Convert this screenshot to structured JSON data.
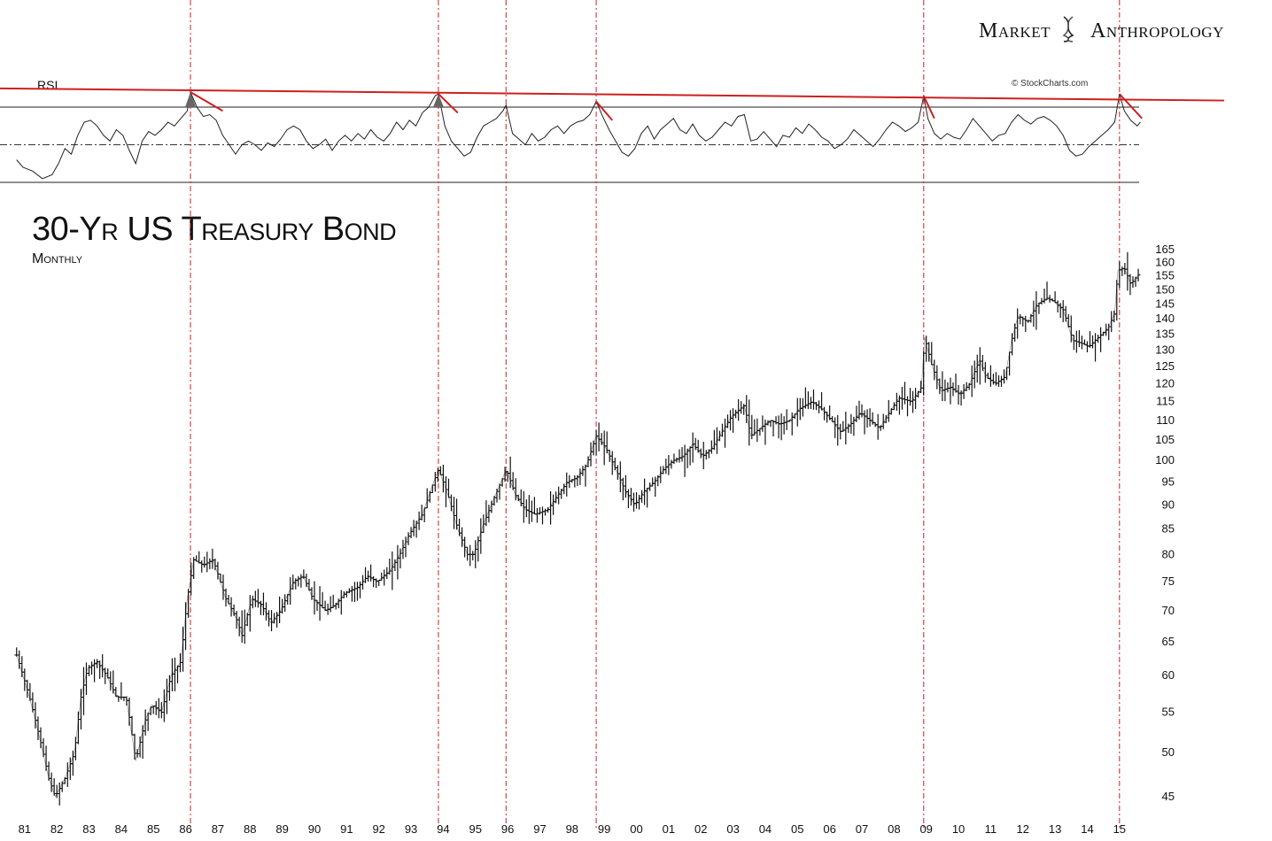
{
  "brand": {
    "word1": "Market",
    "word2": "Anthropology",
    "icon": "dna-helix-icon"
  },
  "credit": "© StockCharts.com",
  "chart_data": {
    "type": "line",
    "title": "30-Yr US Treasury Bond",
    "subtitle": "Monthly",
    "indicator_label": "RSI",
    "y_ticks": [
      45,
      50,
      55,
      60,
      65,
      70,
      75,
      80,
      85,
      90,
      95,
      100,
      105,
      110,
      115,
      120,
      125,
      130,
      135,
      140,
      145,
      150,
      155,
      160,
      165
    ],
    "x_ticks": [
      "81",
      "82",
      "83",
      "84",
      "85",
      "86",
      "87",
      "88",
      "89",
      "90",
      "91",
      "92",
      "93",
      "94",
      "95",
      "96",
      "97",
      "98",
      "99",
      "00",
      "01",
      "02",
      "03",
      "04",
      "05",
      "06",
      "07",
      "08",
      "09",
      "10",
      "11",
      "12",
      "13",
      "14",
      "15"
    ],
    "price_series": {
      "name": "30-Yr US Treasury Bond (monthly bars)",
      "points": [
        [
          1980.8,
          63
        ],
        [
          1981.2,
          57
        ],
        [
          1981.5,
          52
        ],
        [
          1981.8,
          47
        ],
        [
          1982.0,
          45
        ],
        [
          1982.3,
          47
        ],
        [
          1982.6,
          50
        ],
        [
          1982.8,
          57
        ],
        [
          1983.0,
          61
        ],
        [
          1983.3,
          62
        ],
        [
          1983.6,
          60
        ],
        [
          1983.9,
          57
        ],
        [
          1984.2,
          57
        ],
        [
          1984.5,
          49
        ],
        [
          1984.8,
          54
        ],
        [
          1985.0,
          56
        ],
        [
          1985.3,
          55
        ],
        [
          1985.6,
          60
        ],
        [
          1985.9,
          62
        ],
        [
          1986.1,
          72
        ],
        [
          1986.3,
          79
        ],
        [
          1986.6,
          78
        ],
        [
          1986.9,
          79
        ],
        [
          1987.3,
          72
        ],
        [
          1987.6,
          69
        ],
        [
          1987.8,
          66
        ],
        [
          1988.1,
          72
        ],
        [
          1988.4,
          71
        ],
        [
          1988.7,
          68
        ],
        [
          1989.0,
          70
        ],
        [
          1989.4,
          75
        ],
        [
          1989.7,
          76
        ],
        [
          1990.0,
          72
        ],
        [
          1990.4,
          70
        ],
        [
          1990.7,
          71
        ],
        [
          1991.0,
          73
        ],
        [
          1991.4,
          74
        ],
        [
          1991.7,
          76
        ],
        [
          1992.0,
          75
        ],
        [
          1992.4,
          77
        ],
        [
          1992.7,
          80
        ],
        [
          1993.0,
          84
        ],
        [
          1993.4,
          88
        ],
        [
          1993.7,
          94
        ],
        [
          1993.9,
          98
        ],
        [
          1994.2,
          92
        ],
        [
          1994.5,
          85
        ],
        [
          1994.8,
          80
        ],
        [
          1995.0,
          80
        ],
        [
          1995.3,
          86
        ],
        [
          1995.6,
          91
        ],
        [
          1995.9,
          96
        ],
        [
          1996.0,
          98
        ],
        [
          1996.3,
          92
        ],
        [
          1996.6,
          89
        ],
        [
          1996.9,
          88
        ],
        [
          1997.3,
          89
        ],
        [
          1997.6,
          92
        ],
        [
          1997.9,
          95
        ],
        [
          1998.2,
          96
        ],
        [
          1998.5,
          99
        ],
        [
          1998.8,
          106
        ],
        [
          1999.1,
          103
        ],
        [
          1999.4,
          98
        ],
        [
          1999.7,
          93
        ],
        [
          2000.0,
          90
        ],
        [
          2000.3,
          93
        ],
        [
          2000.6,
          95
        ],
        [
          2000.9,
          98
        ],
        [
          2001.2,
          100
        ],
        [
          2001.5,
          101
        ],
        [
          2001.8,
          104
        ],
        [
          2002.1,
          101
        ],
        [
          2002.4,
          103
        ],
        [
          2002.7,
          107
        ],
        [
          2003.0,
          111
        ],
        [
          2003.4,
          114
        ],
        [
          2003.6,
          106
        ],
        [
          2003.9,
          108
        ],
        [
          2004.2,
          110
        ],
        [
          2004.5,
          109
        ],
        [
          2004.8,
          110
        ],
        [
          2005.1,
          113
        ],
        [
          2005.5,
          115
        ],
        [
          2005.8,
          113
        ],
        [
          2006.1,
          110
        ],
        [
          2006.4,
          107
        ],
        [
          2006.7,
          109
        ],
        [
          2007.0,
          112
        ],
        [
          2007.3,
          110
        ],
        [
          2007.6,
          108
        ],
        [
          2007.9,
          112
        ],
        [
          2008.2,
          116
        ],
        [
          2008.6,
          115
        ],
        [
          2008.9,
          119
        ],
        [
          2009.0,
          134
        ],
        [
          2009.2,
          126
        ],
        [
          2009.5,
          118
        ],
        [
          2009.8,
          119
        ],
        [
          2010.1,
          117
        ],
        [
          2010.4,
          120
        ],
        [
          2010.7,
          127
        ],
        [
          2010.9,
          122
        ],
        [
          2011.2,
          120
        ],
        [
          2011.5,
          122
        ],
        [
          2011.7,
          133
        ],
        [
          2011.9,
          141
        ],
        [
          2012.2,
          139
        ],
        [
          2012.5,
          145
        ],
        [
          2012.8,
          147
        ],
        [
          2013.0,
          146
        ],
        [
          2013.3,
          143
        ],
        [
          2013.6,
          133
        ],
        [
          2013.9,
          132
        ],
        [
          2014.1,
          131
        ],
        [
          2014.4,
          134
        ],
        [
          2014.7,
          137
        ],
        [
          2014.9,
          142
        ],
        [
          2015.0,
          157
        ],
        [
          2015.2,
          158
        ],
        [
          2015.4,
          152
        ],
        [
          2015.6,
          155
        ],
        [
          2015.7,
          156
        ]
      ]
    },
    "rsi_levels": {
      "overbought": 70,
      "midline": 50,
      "oversold": 30
    },
    "rsi_series": {
      "name": "RSI",
      "points": [
        [
          1980.8,
          42
        ],
        [
          1981.0,
          38
        ],
        [
          1981.3,
          36
        ],
        [
          1981.6,
          32
        ],
        [
          1981.9,
          34
        ],
        [
          1982.1,
          40
        ],
        [
          1982.3,
          48
        ],
        [
          1982.5,
          45
        ],
        [
          1982.7,
          55
        ],
        [
          1982.9,
          62
        ],
        [
          1983.1,
          63
        ],
        [
          1983.3,
          60
        ],
        [
          1983.5,
          55
        ],
        [
          1983.7,
          52
        ],
        [
          1983.9,
          58
        ],
        [
          1984.1,
          55
        ],
        [
          1984.3,
          47
        ],
        [
          1984.5,
          40
        ],
        [
          1984.7,
          52
        ],
        [
          1984.9,
          57
        ],
        [
          1985.1,
          55
        ],
        [
          1985.3,
          58
        ],
        [
          1985.5,
          62
        ],
        [
          1985.7,
          60
        ],
        [
          1985.9,
          64
        ],
        [
          1986.1,
          68
        ],
        [
          1986.2,
          78
        ],
        [
          1986.4,
          70
        ],
        [
          1986.6,
          65
        ],
        [
          1986.8,
          66
        ],
        [
          1987.0,
          63
        ],
        [
          1987.2,
          55
        ],
        [
          1987.4,
          50
        ],
        [
          1987.6,
          45
        ],
        [
          1987.8,
          50
        ],
        [
          1988.0,
          52
        ],
        [
          1988.2,
          50
        ],
        [
          1988.4,
          47
        ],
        [
          1988.6,
          51
        ],
        [
          1988.8,
          49
        ],
        [
          1989.0,
          53
        ],
        [
          1989.2,
          58
        ],
        [
          1989.4,
          60
        ],
        [
          1989.6,
          58
        ],
        [
          1989.8,
          52
        ],
        [
          1990.0,
          48
        ],
        [
          1990.2,
          50
        ],
        [
          1990.4,
          53
        ],
        [
          1990.6,
          47
        ],
        [
          1990.8,
          52
        ],
        [
          1991.0,
          55
        ],
        [
          1991.2,
          52
        ],
        [
          1991.4,
          56
        ],
        [
          1991.6,
          53
        ],
        [
          1991.8,
          58
        ],
        [
          1992.0,
          54
        ],
        [
          1992.2,
          52
        ],
        [
          1992.4,
          56
        ],
        [
          1992.6,
          62
        ],
        [
          1992.8,
          58
        ],
        [
          1993.0,
          63
        ],
        [
          1993.2,
          60
        ],
        [
          1993.4,
          67
        ],
        [
          1993.6,
          70
        ],
        [
          1993.8,
          76
        ],
        [
          1993.9,
          77
        ],
        [
          1994.1,
          60
        ],
        [
          1994.3,
          52
        ],
        [
          1994.5,
          48
        ],
        [
          1994.7,
          44
        ],
        [
          1994.9,
          46
        ],
        [
          1995.1,
          54
        ],
        [
          1995.3,
          60
        ],
        [
          1995.5,
          62
        ],
        [
          1995.7,
          64
        ],
        [
          1995.9,
          68
        ],
        [
          1996.0,
          71
        ],
        [
          1996.2,
          56
        ],
        [
          1996.4,
          53
        ],
        [
          1996.6,
          50
        ],
        [
          1996.8,
          56
        ],
        [
          1997.0,
          52
        ],
        [
          1997.2,
          54
        ],
        [
          1997.4,
          58
        ],
        [
          1997.6,
          60
        ],
        [
          1997.8,
          56
        ],
        [
          1998.0,
          60
        ],
        [
          1998.2,
          62
        ],
        [
          1998.4,
          63
        ],
        [
          1998.6,
          66
        ],
        [
          1998.8,
          73
        ],
        [
          1999.0,
          65
        ],
        [
          1999.2,
          58
        ],
        [
          1999.4,
          52
        ],
        [
          1999.6,
          46
        ],
        [
          1999.8,
          44
        ],
        [
          2000.0,
          48
        ],
        [
          2000.2,
          56
        ],
        [
          2000.4,
          60
        ],
        [
          2000.6,
          53
        ],
        [
          2000.8,
          58
        ],
        [
          2001.0,
          61
        ],
        [
          2001.2,
          64
        ],
        [
          2001.4,
          58
        ],
        [
          2001.6,
          56
        ],
        [
          2001.8,
          61
        ],
        [
          2002.0,
          55
        ],
        [
          2002.2,
          52
        ],
        [
          2002.4,
          54
        ],
        [
          2002.6,
          58
        ],
        [
          2002.8,
          62
        ],
        [
          2003.0,
          60
        ],
        [
          2003.2,
          65
        ],
        [
          2003.4,
          66
        ],
        [
          2003.6,
          52
        ],
        [
          2003.8,
          53
        ],
        [
          2004.0,
          57
        ],
        [
          2004.2,
          53
        ],
        [
          2004.4,
          49
        ],
        [
          2004.6,
          55
        ],
        [
          2004.8,
          54
        ],
        [
          2005.0,
          59
        ],
        [
          2005.2,
          56
        ],
        [
          2005.4,
          61
        ],
        [
          2005.6,
          58
        ],
        [
          2005.8,
          54
        ],
        [
          2006.0,
          52
        ],
        [
          2006.2,
          48
        ],
        [
          2006.4,
          50
        ],
        [
          2006.6,
          53
        ],
        [
          2006.8,
          58
        ],
        [
          2007.0,
          55
        ],
        [
          2007.2,
          52
        ],
        [
          2007.4,
          49
        ],
        [
          2007.6,
          53
        ],
        [
          2007.8,
          58
        ],
        [
          2008.0,
          62
        ],
        [
          2008.2,
          60
        ],
        [
          2008.4,
          57
        ],
        [
          2008.6,
          59
        ],
        [
          2008.8,
          62
        ],
        [
          2008.97,
          76
        ],
        [
          2009.1,
          64
        ],
        [
          2009.3,
          56
        ],
        [
          2009.5,
          53
        ],
        [
          2009.7,
          56
        ],
        [
          2009.9,
          54
        ],
        [
          2010.1,
          53
        ],
        [
          2010.3,
          58
        ],
        [
          2010.5,
          64
        ],
        [
          2010.7,
          60
        ],
        [
          2010.9,
          56
        ],
        [
          2011.1,
          52
        ],
        [
          2011.3,
          55
        ],
        [
          2011.5,
          56
        ],
        [
          2011.7,
          62
        ],
        [
          2011.9,
          66
        ],
        [
          2012.1,
          63
        ],
        [
          2012.3,
          61
        ],
        [
          2012.5,
          64
        ],
        [
          2012.7,
          65
        ],
        [
          2012.9,
          63
        ],
        [
          2013.1,
          60
        ],
        [
          2013.3,
          55
        ],
        [
          2013.5,
          47
        ],
        [
          2013.7,
          44
        ],
        [
          2013.9,
          45
        ],
        [
          2014.1,
          49
        ],
        [
          2014.3,
          52
        ],
        [
          2014.5,
          55
        ],
        [
          2014.7,
          58
        ],
        [
          2014.9,
          62
        ],
        [
          2015.05,
          77
        ],
        [
          2015.2,
          68
        ],
        [
          2015.4,
          63
        ],
        [
          2015.6,
          60
        ],
        [
          2015.7,
          62
        ]
      ]
    },
    "trendline_rsi": {
      "from": [
        1980.0,
        80
      ],
      "to": [
        2018.3,
        73.5
      ]
    },
    "peak_markers": [
      1986.2,
      1993.9,
      1996.0,
      1998.8,
      2008.97,
      2015.05
    ],
    "local_downtrends": [
      {
        "from": [
          1986.2,
          78
        ],
        "to": [
          1987.2,
          68
        ]
      },
      {
        "from": [
          1993.9,
          77
        ],
        "to": [
          1994.5,
          67
        ]
      },
      {
        "from": [
          1998.8,
          73
        ],
        "to": [
          1999.3,
          63
        ]
      },
      {
        "from": [
          2008.97,
          76
        ],
        "to": [
          2009.3,
          64
        ]
      },
      {
        "from": [
          2015.05,
          77
        ],
        "to": [
          2015.75,
          64
        ]
      }
    ],
    "colors": {
      "price": "#111111",
      "rsi": "#222222",
      "trend": "#cc2020",
      "guide": "#cc2020"
    },
    "y_scale": "log"
  }
}
